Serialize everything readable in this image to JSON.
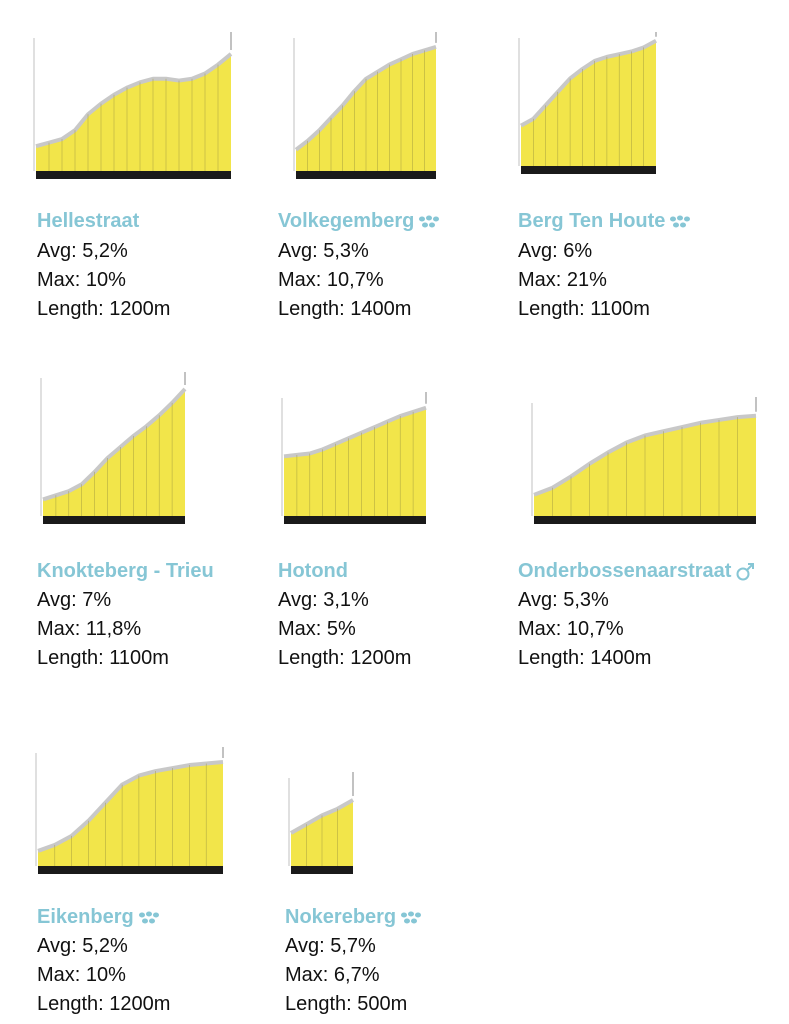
{
  "climbs": [
    {
      "name": "Hellestraat",
      "avg": "Avg: 5,2%",
      "max": "Max: 10%",
      "length": "Length: 1200m",
      "ylim": [
        10,
        85
      ],
      "profile": [
        24,
        26,
        28,
        33,
        42,
        48,
        53,
        57,
        60,
        62,
        62,
        61,
        62,
        65,
        70,
        76
      ]
    },
    {
      "name": "Volkegemberg",
      "avg": "Avg: 5,3%",
      "max": "Max: 10,7%",
      "length": "Length: 1400m",
      "ylim": [
        10,
        85
      ],
      "profile": [
        22,
        27,
        33,
        40,
        47,
        55,
        62,
        66,
        70,
        73,
        76,
        78,
        80
      ]
    },
    {
      "name": "Berg Ten Houte",
      "avg": "Avg: 6%",
      "max": "Max: 21%",
      "length": "Length: 1100m",
      "ylim": [
        10,
        105
      ],
      "profile": [
        40,
        45,
        55,
        65,
        75,
        82,
        88,
        91,
        93,
        95,
        98,
        103
      ]
    },
    {
      "name": "Knokteberg - Trieu",
      "avg": "Avg: 7%",
      "max": "Max: 11,8%",
      "length": "Length: 1100m",
      "ylim": [
        10,
        110
      ],
      "profile": [
        22,
        25,
        28,
        33,
        42,
        52,
        60,
        68,
        75,
        83,
        92,
        102
      ]
    },
    {
      "name": "Hotond",
      "avg": "Avg: 3,1%",
      "max": "Max: 5%",
      "length": "Length: 1200m",
      "ylim": [
        70,
        155
      ],
      "profile": [
        113,
        114,
        115,
        118,
        122,
        126,
        130,
        134,
        138,
        142,
        145,
        148
      ]
    },
    {
      "name": "Onderbossenaarstraat",
      "avg": "Avg: 5,3%",
      "max": "Max: 10,7%",
      "length": "Length: 1400m",
      "ylim": [
        10,
        90
      ],
      "profile": [
        25,
        30,
        38,
        47,
        55,
        62,
        67,
        70,
        73,
        76,
        78,
        80,
        81
      ]
    },
    {
      "name": "Eikenberg",
      "avg": "Avg: 5,2%",
      "max": "Max: 10%",
      "length": "Length: 1200m",
      "ylim": [
        10,
        85
      ],
      "profile": [
        20,
        24,
        30,
        40,
        52,
        64,
        70,
        73,
        75,
        77,
        78,
        79
      ]
    },
    {
      "name": "Nokereberg",
      "avg": "Avg: 5,7%",
      "max": "Max: 6,7%",
      "length": "Length: 500m",
      "ylim": [
        0,
        4
      ],
      "profile": [
        1.5,
        1.9,
        2.3,
        2.6,
        3.0
      ]
    }
  ]
}
